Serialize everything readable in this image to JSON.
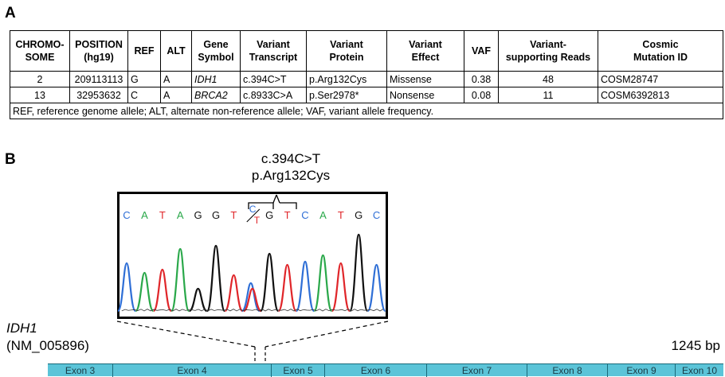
{
  "panels": {
    "a": "A",
    "b": "B"
  },
  "table": {
    "headers": [
      "CHROMO-\nSOME",
      "POSITION\n(hg19)",
      "REF",
      "ALT",
      "Gene\nSymbol",
      "Variant\nTranscript",
      "Variant\nProtein",
      "Variant\nEffect",
      "VAF",
      "Variant-\nsupporting Reads",
      "Cosmic\nMutation ID"
    ],
    "rows": [
      [
        "2",
        "209113113",
        "G",
        "A",
        "IDH1",
        "c.394C>T",
        "p.Arg132Cys",
        "Missense",
        "0.38",
        "48",
        "COSM28747"
      ],
      [
        "13",
        "32953632",
        "C",
        "A",
        "BRCA2",
        "c.8933C>A",
        "p.Ser2978*",
        "Nonsense",
        "0.08",
        "11",
        "COSM6392813"
      ]
    ],
    "footnote": "REF, reference genome allele; ALT, alternate non-reference allele; VAF, variant allele frequency."
  },
  "annotation": {
    "nucleotide": "c.394C>T",
    "protein": "p.Arg132Cys"
  },
  "sequence": {
    "bases": [
      "C",
      "A",
      "T",
      "A",
      "G",
      "G",
      "T",
      "C/T",
      "G",
      "T",
      "C",
      "A",
      "T",
      "G",
      "C"
    ],
    "het_top": "C",
    "het_bottom": "T",
    "colors": {
      "A": "#2aa84a",
      "C": "#2f6fd6",
      "G": "#111111",
      "T": "#e0262a"
    }
  },
  "gene": {
    "name": "IDH1",
    "accession": "(NM_005896)",
    "length": "1245 bp",
    "exons": [
      "Exon 3",
      "Exon 4",
      "Exon 5",
      "Exon 6",
      "Exon 7",
      "Exon 8",
      "Exon 9",
      "Exon 10"
    ]
  }
}
